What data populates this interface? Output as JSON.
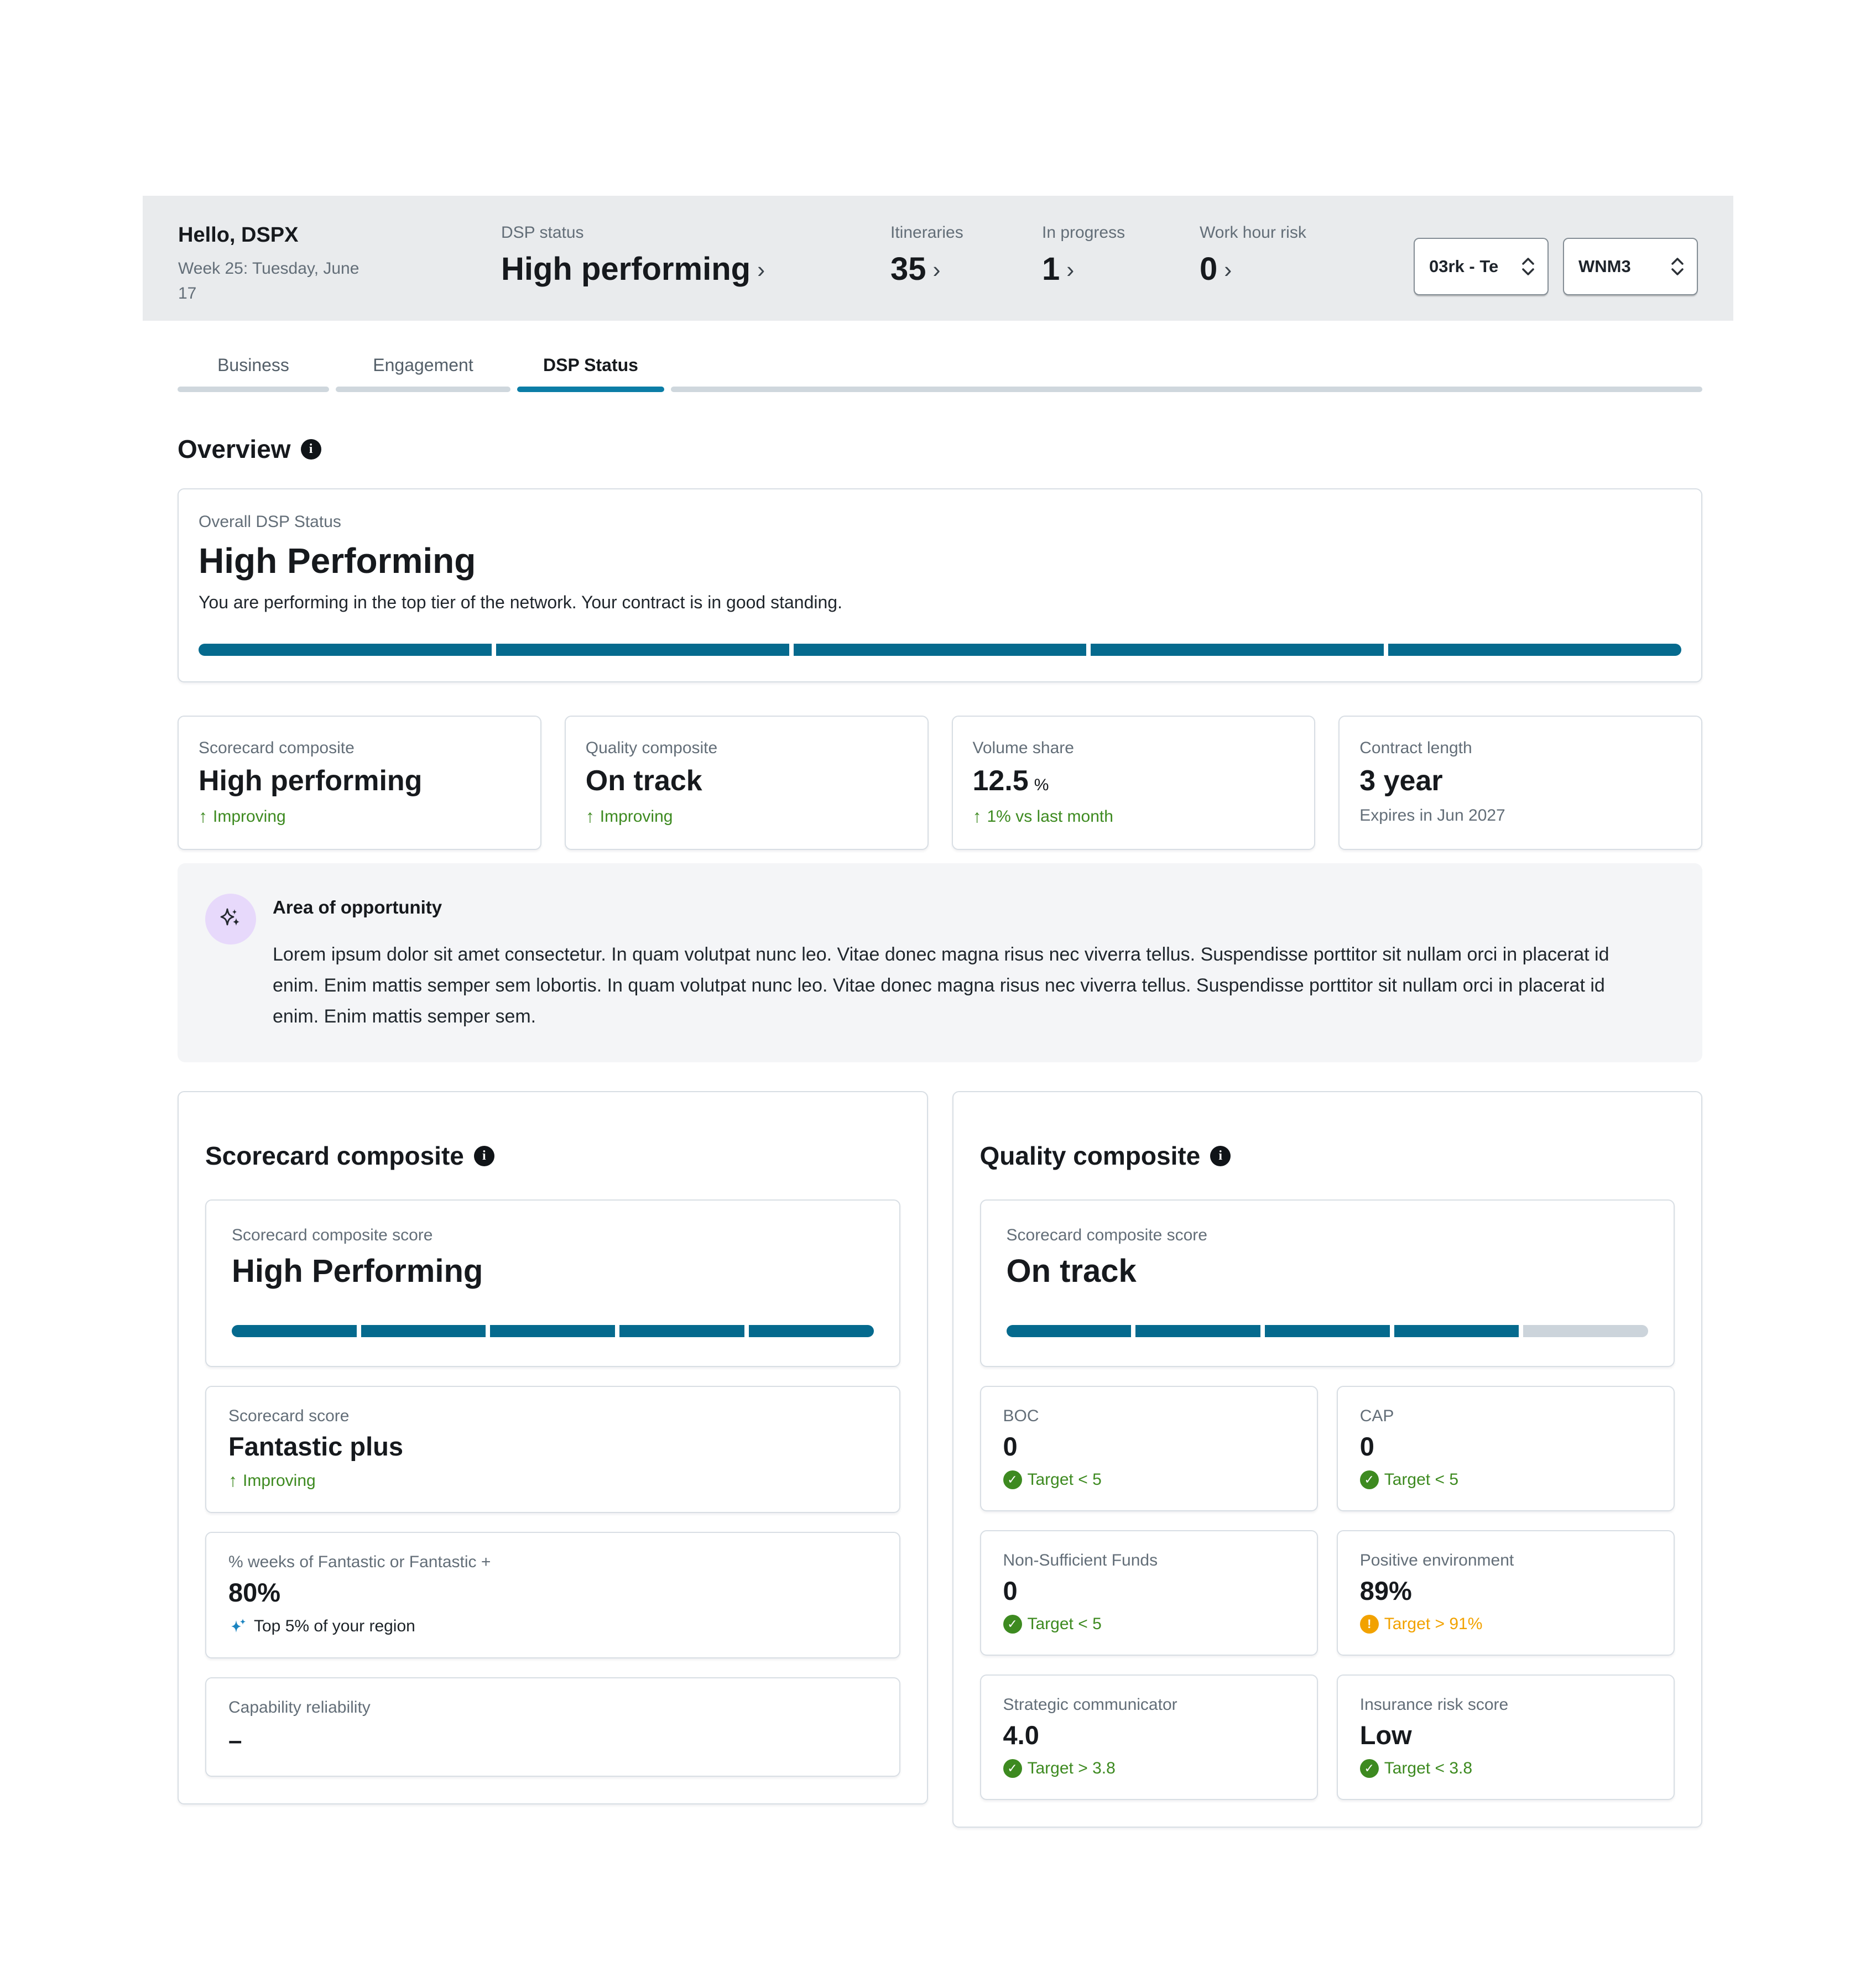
{
  "colors": {
    "teal": "#056a8e",
    "tab_teal": "#0b7da6",
    "green": "#3d8a20",
    "orange": "#f2a200",
    "sparkle_blue": "#1b84c0",
    "purple_bg": "#e7d9fb",
    "band_bg": "#e9ebed"
  },
  "icons": {
    "chevron_right": "›",
    "up_arrow": "↑",
    "check": "✓",
    "exclaim": "!",
    "info": "i"
  },
  "header": {
    "greeting": "Hello, DSPX",
    "date": "Week 25: Tuesday, June 17",
    "dsp_status": {
      "label": "DSP status",
      "value": "High performing"
    },
    "metrics": [
      {
        "label": "Itineraries",
        "value": "35"
      },
      {
        "label": "In progress",
        "value": "1"
      },
      {
        "label": "Work hour risk",
        "value": "0"
      }
    ],
    "selectors": [
      {
        "value": "03rk - Te"
      },
      {
        "value": "WNM3"
      }
    ]
  },
  "tabs": [
    {
      "label": "Business"
    },
    {
      "label": "Engagement"
    },
    {
      "label": "DSP Status"
    }
  ],
  "overview": {
    "title": "Overview",
    "status_card": {
      "label": "Overall DSP Status",
      "value": "High Performing",
      "description": "You are performing in the top tier of the network. Your contract is in good standing.",
      "segments_total": 5,
      "segments_filled": 5
    },
    "stat_cards": [
      {
        "label": "Scorecard composite",
        "value": "High performing",
        "delta": "Improving"
      },
      {
        "label": "Quality composite",
        "value": "On track",
        "delta": "Improving"
      },
      {
        "label": "Volume share",
        "value": "12.5",
        "unit": "%",
        "delta": "1% vs last month"
      },
      {
        "label": "Contract length",
        "value": "3 year",
        "note": "Expires in Jun 2027"
      }
    ],
    "opportunity": {
      "title": "Area of opportunity",
      "body": "Lorem ipsum dolor sit amet consectetur. In quam volutpat nunc leo. Vitae donec magna risus nec viverra tellus. Suspendisse porttitor sit nullam orci in placerat id enim. Enim mattis semper sem lobortis. In quam volutpat nunc leo. Vitae donec magna risus nec viverra tellus. Suspendisse porttitor sit nullam orci in placerat id enim. Enim mattis semper sem."
    }
  },
  "scorecard_section": {
    "title": "Scorecard composite",
    "score_card": {
      "label": "Scorecard composite score",
      "value": "High Performing",
      "segments_total": 5,
      "segments_filled": 5
    },
    "metrics": [
      {
        "label": "Scorecard score",
        "value": "Fantastic plus",
        "status": "Improving"
      },
      {
        "label": "% weeks of Fantastic or Fantastic +",
        "value": "80%",
        "status": "Top 5% of your region"
      },
      {
        "label": "Capability reliability",
        "value": "–"
      }
    ]
  },
  "quality_section": {
    "title": "Quality composite",
    "score_card": {
      "label": "Scorecard composite score",
      "value": "On track",
      "segments_total": 5,
      "segments_filled": 4
    },
    "metrics": [
      {
        "label": "BOC",
        "value": "0",
        "status": "Target < 5"
      },
      {
        "label": "CAP",
        "value": "0",
        "status": "Target < 5"
      },
      {
        "label": "Non-Sufficient Funds",
        "value": "0",
        "status": "Target < 5"
      },
      {
        "label": "Positive environment",
        "value": "89%",
        "status": "Target > 91%"
      },
      {
        "label": "Strategic communicator",
        "value": "4.0",
        "status": "Target > 3.8"
      },
      {
        "label": "Insurance risk score",
        "value": "Low",
        "status": "Target < 3.8"
      }
    ]
  }
}
